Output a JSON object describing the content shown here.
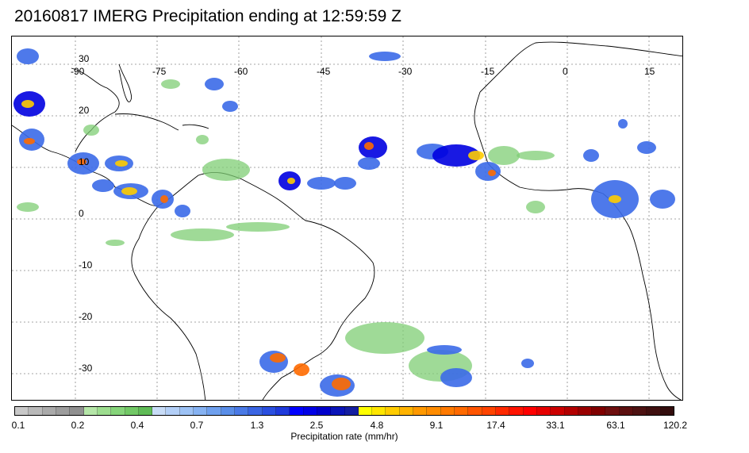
{
  "title": "20160817 IMERG Precipitation ending at 12:59:59 Z",
  "map": {
    "longitude_labels": [
      "-90",
      "-75",
      "-60",
      "-45",
      "-30",
      "-15",
      "0",
      "15"
    ],
    "latitude_labels": [
      "30",
      "20",
      "10",
      "0",
      "-10",
      "-20",
      "-30"
    ],
    "gridlines": "dotted",
    "colors": {
      "coastline": "#000000",
      "grid": "#888888"
    }
  },
  "colorbar": {
    "label": "Precipitation rate (mm/hr)",
    "ticks": [
      "0.1",
      "0.2",
      "0.4",
      "0.7",
      "1.3",
      "2.5",
      "4.8",
      "9.1",
      "17.4",
      "33.1",
      "63.1",
      "120.2"
    ],
    "colors": [
      "#c8c8c8",
      "#b9b9b9",
      "#aaaaaa",
      "#9d9d9d",
      "#909090",
      "#b5e6a8",
      "#9ddd8f",
      "#86d47a",
      "#72c866",
      "#5fbb56",
      "#c8dcf7",
      "#b3cff7",
      "#9dc2f5",
      "#86b2f2",
      "#6fa0ee",
      "#5a8ee8",
      "#4a7ae6",
      "#3a65e3",
      "#2a4fe0",
      "#1f3adb",
      "#0000ff",
      "#0000e6",
      "#0000cc",
      "#0a14b8",
      "#141ea0",
      "#ffff00",
      "#ffe600",
      "#ffcc00",
      "#ffb300",
      "#ff9900",
      "#ff8c00",
      "#ff7a00",
      "#ff6a00",
      "#ff5500",
      "#ff4400",
      "#ff2a00",
      "#ff1400",
      "#ff0000",
      "#e60000",
      "#cc0000",
      "#b30000",
      "#990000",
      "#800000",
      "#6e0f0f",
      "#5c1010",
      "#4d1212",
      "#401010",
      "#330d0d"
    ]
  },
  "precip_colors": {
    "light": "#7fce74",
    "moderate": "#3b6ae8",
    "heavy": "#0000e0",
    "intense": "#ffcc00",
    "extreme": "#ff6a00"
  }
}
